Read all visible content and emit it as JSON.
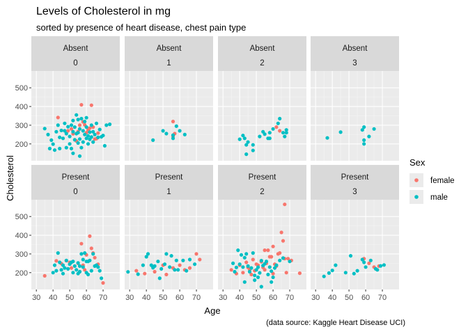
{
  "chart_data": {
    "type": "scatter",
    "title": "Levels of Cholesterol in mg",
    "subtitle": "sorted by presence of heart disease, chest pain type",
    "caption": "(data source: Kaggle Heart Disease UCI)",
    "xlabel": "Age",
    "ylabel": "Cholesterol",
    "xlim": [
      27,
      80
    ],
    "ylim": [
      110,
      590
    ],
    "x_ticks": [
      30,
      40,
      50,
      60,
      70
    ],
    "y_ticks": [
      200,
      300,
      400,
      500
    ],
    "grid": true,
    "legend": {
      "title": "Sex",
      "position": "right",
      "entries": [
        {
          "label": "female",
          "color": "#F8766D"
        },
        {
          "label": "male",
          "color": "#00BFC4"
        }
      ]
    },
    "facet_rows": [
      "Absent",
      "Present"
    ],
    "facet_cols": [
      "0",
      "1",
      "2",
      "3"
    ],
    "series_colors": {
      "female": "#F8766D",
      "male": "#00BFC4"
    },
    "panels": [
      {
        "row": "Absent",
        "col": "0",
        "female": [
          [
            43,
            341
          ],
          [
            49,
            270
          ],
          [
            52,
            254
          ],
          [
            55,
            266
          ],
          [
            57,
            409
          ],
          [
            58,
            318
          ],
          [
            59,
            302
          ],
          [
            61,
            275
          ],
          [
            62,
            284
          ],
          [
            63,
            407
          ],
          [
            65,
            226
          ],
          [
            66,
            228
          ],
          [
            67,
            258
          ],
          [
            54,
            216
          ],
          [
            60,
            260
          ],
          [
            56,
            300
          ],
          [
            64,
            290
          ],
          [
            51,
            280
          ]
        ],
        "male": [
          [
            35,
            282
          ],
          [
            37,
            250
          ],
          [
            38,
            175
          ],
          [
            39,
            220
          ],
          [
            40,
            199
          ],
          [
            41,
            167
          ],
          [
            42,
            265
          ],
          [
            43,
            300
          ],
          [
            44,
            235
          ],
          [
            44,
            175
          ],
          [
            45,
            272
          ],
          [
            46,
            230
          ],
          [
            47,
            270
          ],
          [
            48,
            180
          ],
          [
            48,
            255
          ],
          [
            49,
            292
          ],
          [
            50,
            200
          ],
          [
            50,
            240
          ],
          [
            51,
            175
          ],
          [
            51,
            300
          ],
          [
            52,
            265
          ],
          [
            52,
            325
          ],
          [
            53,
            222
          ],
          [
            53,
            290
          ],
          [
            54,
            255
          ],
          [
            54,
            355
          ],
          [
            55,
            260
          ],
          [
            55,
            205
          ],
          [
            56,
            226
          ],
          [
            56,
            280
          ],
          [
            57,
            180
          ],
          [
            57,
            335
          ],
          [
            58,
            210
          ],
          [
            58,
            270
          ],
          [
            59,
            250
          ],
          [
            59,
            320
          ],
          [
            60,
            230
          ],
          [
            60,
            290
          ],
          [
            61,
            243
          ],
          [
            61,
            200
          ],
          [
            62,
            263
          ],
          [
            62,
            225
          ],
          [
            63,
            237
          ],
          [
            63,
            300
          ],
          [
            64,
            210
          ],
          [
            64,
            265
          ],
          [
            65,
            250
          ],
          [
            66,
            310
          ],
          [
            67,
            235
          ],
          [
            68,
            277
          ],
          [
            69,
            238
          ],
          [
            70,
            245
          ],
          [
            71,
            190
          ],
          [
            72,
            300
          ],
          [
            74,
            305
          ],
          [
            52,
            150
          ],
          [
            56,
            135
          ],
          [
            47,
            310
          ],
          [
            55,
            330
          ],
          [
            60,
            340
          ]
        ]
      },
      {
        "row": "Absent",
        "col": "1",
        "female": [
          [
            56,
            320
          ],
          [
            57,
            255
          ],
          [
            56,
            240
          ]
        ],
        "male": [
          [
            44,
            220
          ],
          [
            50,
            270
          ],
          [
            52,
            255
          ],
          [
            56,
            247
          ],
          [
            58,
            295
          ],
          [
            60,
            270
          ],
          [
            63,
            250
          ],
          [
            56,
            230
          ]
        ]
      },
      {
        "row": "Absent",
        "col": "2",
        "female": [
          [
            62,
            290
          ],
          [
            64,
            270
          ]
        ],
        "male": [
          [
            40,
            225
          ],
          [
            42,
            245
          ],
          [
            43,
            230
          ],
          [
            44,
            195
          ],
          [
            45,
            210
          ],
          [
            48,
            165
          ],
          [
            48,
            195
          ],
          [
            52,
            240
          ],
          [
            54,
            265
          ],
          [
            55,
            252
          ],
          [
            57,
            230
          ],
          [
            58,
            260
          ],
          [
            58,
            230
          ],
          [
            60,
            280
          ],
          [
            63,
            310
          ],
          [
            64,
            335
          ],
          [
            66,
            260
          ],
          [
            67,
            240
          ],
          [
            68,
            275
          ],
          [
            68,
            260
          ],
          [
            44,
            145
          ]
        ]
      },
      {
        "row": "Absent",
        "col": "3",
        "female": [],
        "male": [
          [
            37,
            232
          ],
          [
            45,
            263
          ],
          [
            58,
            275
          ],
          [
            59,
            290
          ],
          [
            59,
            220
          ],
          [
            59,
            200
          ],
          [
            62,
            240
          ],
          [
            65,
            280
          ]
        ]
      },
      {
        "row": "Present",
        "col": "0",
        "female": [
          [
            35,
            183
          ],
          [
            42,
            263
          ],
          [
            45,
            248
          ],
          [
            48,
            264
          ],
          [
            50,
            255
          ],
          [
            55,
            250
          ],
          [
            56,
            205
          ],
          [
            57,
            355
          ],
          [
            58,
            240
          ],
          [
            60,
            295
          ],
          [
            62,
            395
          ],
          [
            63,
            330
          ],
          [
            64,
            305
          ],
          [
            65,
            280
          ],
          [
            67,
            245
          ],
          [
            70,
            145
          ],
          [
            51,
            225
          ],
          [
            59,
            215
          ]
        ],
        "male": [
          [
            40,
            200
          ],
          [
            41,
            240
          ],
          [
            42,
            210
          ],
          [
            43,
            305
          ],
          [
            44,
            255
          ],
          [
            45,
            215
          ],
          [
            46,
            240
          ],
          [
            47,
            225
          ],
          [
            48,
            265
          ],
          [
            49,
            220
          ],
          [
            50,
            245
          ],
          [
            51,
            255
          ],
          [
            52,
            200
          ],
          [
            53,
            235
          ],
          [
            54,
            215
          ],
          [
            55,
            252
          ],
          [
            55,
            195
          ],
          [
            56,
            235
          ],
          [
            57,
            300
          ],
          [
            58,
            230
          ],
          [
            58,
            270
          ],
          [
            59,
            305
          ],
          [
            60,
            200
          ],
          [
            60,
            260
          ],
          [
            61,
            190
          ],
          [
            61,
            260
          ],
          [
            62,
            265
          ],
          [
            63,
            210
          ],
          [
            64,
            300
          ],
          [
            65,
            235
          ],
          [
            66,
            240
          ],
          [
            67,
            230
          ],
          [
            68,
            210
          ],
          [
            69,
            170
          ],
          [
            56,
            205
          ],
          [
            46,
            195
          ],
          [
            52,
            260
          ]
        ]
      },
      {
        "row": "Present",
        "col": "1",
        "female": [
          [
            34,
            210
          ],
          [
            39,
            195
          ],
          [
            45,
            205
          ],
          [
            50,
            240
          ],
          [
            52,
            190
          ],
          [
            56,
            225
          ],
          [
            60,
            240
          ],
          [
            63,
            215
          ],
          [
            66,
            225
          ],
          [
            70,
            300
          ],
          [
            72,
            270
          ]
        ],
        "male": [
          [
            29,
            204
          ],
          [
            35,
            192
          ],
          [
            38,
            240
          ],
          [
            40,
            285
          ],
          [
            41,
            300
          ],
          [
            43,
            240
          ],
          [
            44,
            226
          ],
          [
            45,
            235
          ],
          [
            47,
            260
          ],
          [
            49,
            220
          ],
          [
            51,
            245
          ],
          [
            52,
            300
          ],
          [
            54,
            230
          ],
          [
            55,
            290
          ],
          [
            57,
            215
          ],
          [
            58,
            265
          ],
          [
            59,
            215
          ],
          [
            62,
            265
          ],
          [
            64,
            210
          ],
          [
            66,
            270
          ],
          [
            69,
            245
          ],
          [
            48,
            170
          ]
        ]
      },
      {
        "row": "Present",
        "col": "2",
        "female": [
          [
            35,
            215
          ],
          [
            38,
            195
          ],
          [
            40,
            240
          ],
          [
            42,
            200
          ],
          [
            44,
            255
          ],
          [
            46,
            215
          ],
          [
            47,
            190
          ],
          [
            48,
            270
          ],
          [
            50,
            245
          ],
          [
            51,
            240
          ],
          [
            53,
            258
          ],
          [
            54,
            228
          ],
          [
            55,
            320
          ],
          [
            56,
            250
          ],
          [
            57,
            320
          ],
          [
            58,
            285
          ],
          [
            59,
            285
          ],
          [
            60,
            340
          ],
          [
            61,
            245
          ],
          [
            62,
            235
          ],
          [
            63,
            300
          ],
          [
            64,
            305
          ],
          [
            65,
            415
          ],
          [
            66,
            370
          ],
          [
            67,
            275
          ],
          [
            68,
            200
          ],
          [
            69,
            275
          ],
          [
            71,
            265
          ],
          [
            76,
            197
          ],
          [
            67,
            565
          ],
          [
            60,
            195
          ],
          [
            55,
            215
          ],
          [
            49,
            210
          ],
          [
            45,
            228
          ]
        ],
        "male": [
          [
            36,
            250
          ],
          [
            37,
            205
          ],
          [
            38,
            228
          ],
          [
            39,
            320
          ],
          [
            40,
            245
          ],
          [
            41,
            295
          ],
          [
            42,
            230
          ],
          [
            43,
            280
          ],
          [
            44,
            300
          ],
          [
            45,
            235
          ],
          [
            46,
            205
          ],
          [
            47,
            225
          ],
          [
            48,
            305
          ],
          [
            49,
            185
          ],
          [
            50,
            215
          ],
          [
            51,
            229
          ],
          [
            52,
            199
          ],
          [
            53,
            264
          ],
          [
            54,
            238
          ],
          [
            55,
            247
          ],
          [
            56,
            260
          ],
          [
            57,
            190
          ],
          [
            58,
            230
          ],
          [
            59,
            208
          ],
          [
            60,
            175
          ],
          [
            61,
            225
          ],
          [
            62,
            240
          ],
          [
            64,
            265
          ],
          [
            66,
            278
          ],
          [
            70,
            260
          ],
          [
            53,
            125
          ],
          [
            43,
            150
          ],
          [
            49,
            160
          ],
          [
            59,
            150
          ],
          [
            51,
            175
          ]
        ]
      },
      {
        "row": "Present",
        "col": "3",
        "female": [
          [
            59,
            275
          ],
          [
            62,
            250
          ],
          [
            65,
            230
          ],
          [
            68,
            235
          ]
        ],
        "male": [
          [
            35,
            180
          ],
          [
            38,
            198
          ],
          [
            40,
            212
          ],
          [
            42,
            240
          ],
          [
            48,
            200
          ],
          [
            51,
            290
          ],
          [
            53,
            195
          ],
          [
            55,
            210
          ],
          [
            58,
            270
          ],
          [
            59,
            255
          ],
          [
            60,
            230
          ],
          [
            63,
            265
          ],
          [
            66,
            220
          ],
          [
            67,
            215
          ],
          [
            69,
            236
          ],
          [
            71,
            241
          ]
        ]
      }
    ]
  }
}
